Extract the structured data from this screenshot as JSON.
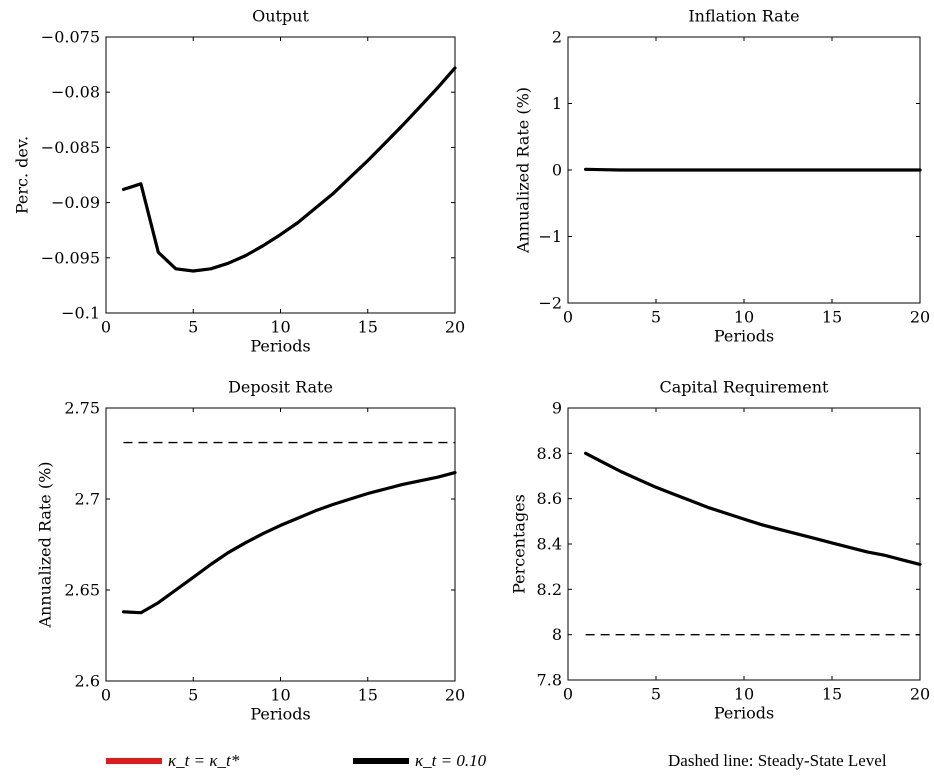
{
  "chart_data": [
    {
      "type": "line",
      "title": "Output",
      "xlabel": "Periods",
      "ylabel": "Perc. dev.",
      "xlim": [
        0,
        20
      ],
      "ylim": [
        -0.1,
        -0.075
      ],
      "xticks": [
        0,
        5,
        10,
        15,
        20
      ],
      "yticks": [
        -0.1,
        -0.095,
        -0.09,
        -0.085,
        -0.08,
        -0.075
      ],
      "ytick_labels": [
        "−0.1",
        "−0.095",
        "−0.09",
        "−0.085",
        "−0.08",
        "−0.075"
      ],
      "series": [
        {
          "color": "#000000",
          "x": [
            1,
            2,
            3,
            4,
            5,
            6,
            7,
            8,
            9,
            10,
            11,
            12,
            13,
            14,
            15,
            16,
            17,
            18,
            19,
            20
          ],
          "y": [
            -0.0888,
            -0.0883,
            -0.0945,
            -0.096,
            -0.0962,
            -0.096,
            -0.0955,
            -0.0948,
            -0.0939,
            -0.0929,
            -0.0918,
            -0.0905,
            -0.0892,
            -0.0877,
            -0.0862,
            -0.0846,
            -0.083,
            -0.0813,
            -0.0796,
            -0.0778
          ]
        }
      ],
      "steady_state": null
    },
    {
      "type": "line",
      "title": "Inflation Rate",
      "xlabel": "Periods",
      "ylabel": "Annualized Rate (%)",
      "xlim": [
        0,
        20
      ],
      "ylim": [
        -2,
        2
      ],
      "xticks": [
        0,
        5,
        10,
        15,
        20
      ],
      "yticks": [
        -2,
        -1,
        0,
        1,
        2
      ],
      "ytick_labels": [
        "−2",
        "−1",
        "0",
        "1",
        "2"
      ],
      "series": [
        {
          "color": "#000000",
          "x": [
            1,
            2,
            3,
            4,
            5,
            6,
            7,
            8,
            9,
            10,
            11,
            12,
            13,
            14,
            15,
            16,
            17,
            18,
            19,
            20
          ],
          "y": [
            0.01,
            0.005,
            0.0,
            0.0,
            0.0,
            0.0,
            0.0,
            0.0,
            0.0,
            0.0,
            0.0,
            0.0,
            0.0,
            0.0,
            0.0,
            0.0,
            0.0,
            0.0,
            0.0,
            0.0
          ]
        }
      ],
      "steady_state": null
    },
    {
      "type": "line",
      "title": "Deposit Rate",
      "xlabel": "Periods",
      "ylabel": "Annualized Rate (%)",
      "xlim": [
        0,
        20
      ],
      "ylim": [
        2.6,
        2.75
      ],
      "xticks": [
        0,
        5,
        10,
        15,
        20
      ],
      "yticks": [
        2.6,
        2.65,
        2.7,
        2.75
      ],
      "ytick_labels": [
        "2.6",
        "2.65",
        "2.7",
        "2.75"
      ],
      "series": [
        {
          "color": "#000000",
          "x": [
            1,
            2,
            3,
            4,
            5,
            6,
            7,
            8,
            9,
            10,
            11,
            12,
            13,
            14,
            15,
            16,
            17,
            18,
            19,
            20
          ],
          "y": [
            2.638,
            2.6375,
            2.643,
            2.65,
            2.657,
            2.664,
            2.6705,
            2.676,
            2.681,
            2.6855,
            2.6895,
            2.6935,
            2.697,
            2.7,
            2.703,
            2.7055,
            2.708,
            2.71,
            2.712,
            2.7145
          ]
        }
      ],
      "steady_state": 2.731
    },
    {
      "type": "line",
      "title": "Capital Requirement",
      "xlabel": "Periods",
      "ylabel": "Percentages",
      "xlim": [
        0,
        20
      ],
      "ylim": [
        7.8,
        9
      ],
      "xticks": [
        0,
        5,
        10,
        15,
        20
      ],
      "yticks": [
        7.8,
        8,
        8.2,
        8.4,
        8.6,
        8.8,
        9
      ],
      "ytick_labels": [
        "7.8",
        "8",
        "8.2",
        "8.4",
        "8.6",
        "8.8",
        "9"
      ],
      "series": [
        {
          "color": "#000000",
          "x": [
            1,
            2,
            3,
            4,
            5,
            6,
            7,
            8,
            9,
            10,
            11,
            12,
            13,
            14,
            15,
            16,
            17,
            18,
            19,
            20
          ],
          "y": [
            8.8,
            8.76,
            8.72,
            8.685,
            8.65,
            8.62,
            8.59,
            8.56,
            8.535,
            8.51,
            8.485,
            8.465,
            8.445,
            8.425,
            8.405,
            8.385,
            8.365,
            8.35,
            8.33,
            8.31
          ]
        }
      ],
      "steady_state": 8.0
    }
  ],
  "legend": {
    "items": [
      {
        "label": "κ_t = κ_t*",
        "color": "#e31a1c"
      },
      {
        "label": "κ_t = 0.10",
        "color": "#000000"
      }
    ],
    "note": "Dashed line: Steady-State Level"
  }
}
